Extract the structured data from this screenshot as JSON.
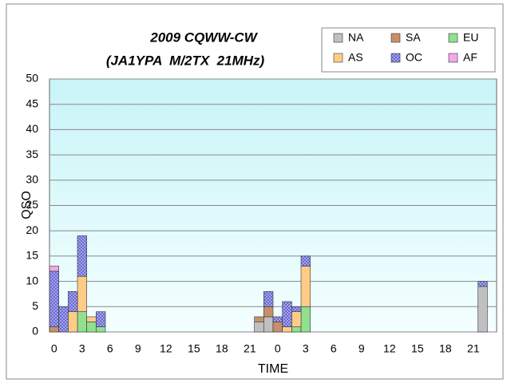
{
  "chart_data": {
    "type": "stacked_bar",
    "title": "2009 CQWW-CW",
    "subtitle": "(JA1YPA  M/2TX  21MHz)",
    "x_label": "TIME",
    "y_label": "QSO",
    "categories": [
      "0",
      null,
      null,
      "3",
      null,
      null,
      "6",
      null,
      null,
      "9",
      null,
      null,
      "12",
      null,
      null,
      "15",
      null,
      null,
      "18",
      null,
      null,
      "21",
      null,
      null,
      "0",
      null,
      null,
      "3",
      null,
      null,
      "6",
      null,
      null,
      "9",
      null,
      null,
      "12",
      null,
      null,
      "15",
      null,
      null,
      "18",
      null,
      null,
      "21",
      null,
      null
    ],
    "ylim": [
      0,
      50
    ],
    "yticks": [
      0,
      5,
      10,
      15,
      20,
      25,
      30,
      35,
      40,
      45,
      50
    ],
    "grid": true,
    "series": [
      {
        "name": "NA",
        "color": "#c0c0c0",
        "values": [
          0,
          0,
          0,
          0,
          0,
          0,
          0,
          0,
          0,
          0,
          0,
          0,
          0,
          0,
          0,
          0,
          0,
          0,
          0,
          0,
          0,
          0,
          2,
          3,
          0,
          0,
          0,
          0,
          0,
          0,
          0,
          0,
          0,
          0,
          0,
          0,
          0,
          0,
          0,
          0,
          0,
          0,
          0,
          0,
          0,
          0,
          9,
          0
        ]
      },
      {
        "name": "SA",
        "color": "#c8906a",
        "values": [
          1,
          0,
          0,
          0,
          0,
          0,
          0,
          0,
          0,
          0,
          0,
          0,
          0,
          0,
          0,
          0,
          0,
          0,
          0,
          0,
          0,
          0,
          1,
          2,
          2,
          0,
          0,
          0,
          0,
          0,
          0,
          0,
          0,
          0,
          0,
          0,
          0,
          0,
          0,
          0,
          0,
          0,
          0,
          0,
          0,
          0,
          0,
          0
        ]
      },
      {
        "name": "EU",
        "color": "#90e090",
        "values": [
          0,
          0,
          0,
          4,
          2,
          1,
          0,
          0,
          0,
          0,
          0,
          0,
          0,
          0,
          0,
          0,
          0,
          0,
          0,
          0,
          0,
          0,
          0,
          0,
          0,
          0,
          1,
          5,
          0,
          0,
          0,
          0,
          0,
          0,
          0,
          0,
          0,
          0,
          0,
          0,
          0,
          0,
          0,
          0,
          0,
          0,
          0,
          0
        ]
      },
      {
        "name": "AS",
        "color": "#ffcc88",
        "values": [
          0,
          0,
          4,
          7,
          1,
          0,
          0,
          0,
          0,
          0,
          0,
          0,
          0,
          0,
          0,
          0,
          0,
          0,
          0,
          0,
          0,
          0,
          0,
          0,
          0,
          1,
          3,
          8,
          0,
          0,
          0,
          0,
          0,
          0,
          0,
          0,
          0,
          0,
          0,
          0,
          0,
          0,
          0,
          0,
          0,
          0,
          0,
          0
        ]
      },
      {
        "name": "OC",
        "color": "#a8a8f0",
        "values": [
          11,
          5,
          4,
          8,
          0,
          3,
          0,
          0,
          0,
          0,
          0,
          0,
          0,
          0,
          0,
          0,
          0,
          0,
          0,
          0,
          0,
          0,
          0,
          3,
          1,
          5,
          1,
          2,
          0,
          0,
          0,
          0,
          0,
          0,
          0,
          0,
          0,
          0,
          0,
          0,
          0,
          0,
          0,
          0,
          0,
          0,
          1,
          0
        ]
      },
      {
        "name": "AF",
        "color": "#f0a8e8",
        "values": [
          1,
          0,
          0,
          0,
          0,
          0,
          0,
          0,
          0,
          0,
          0,
          0,
          0,
          0,
          0,
          0,
          0,
          0,
          0,
          0,
          0,
          0,
          0,
          0,
          0,
          0,
          0,
          0,
          0,
          0,
          0,
          0,
          0,
          0,
          0,
          0,
          0,
          0,
          0,
          0,
          0,
          0,
          0,
          0,
          0,
          0,
          0,
          0
        ]
      }
    ]
  }
}
